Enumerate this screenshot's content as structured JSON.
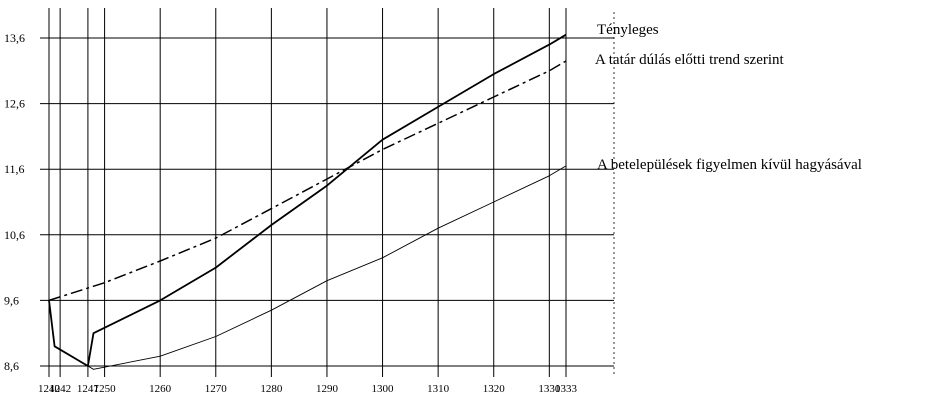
{
  "chart_data": {
    "type": "line",
    "title": "",
    "xlabel": "",
    "ylabel": "",
    "x_ticks": [
      1240,
      1242,
      1247,
      1250,
      1260,
      1270,
      1280,
      1290,
      1300,
      1310,
      1320,
      1330,
      1333
    ],
    "y_ticks": [
      "8,6",
      "9,6",
      "10,6",
      "11,6",
      "12,6",
      "13,6"
    ],
    "y_tick_values": [
      8.6,
      9.6,
      10.6,
      11.6,
      12.6,
      13.6
    ],
    "xlim": [
      1240,
      1333
    ],
    "ylim": [
      8.6,
      14.0
    ],
    "grid": true,
    "series": [
      {
        "name": "Tényleges",
        "style": "solid-thick",
        "points": [
          [
            1240,
            9.6
          ],
          [
            1241,
            8.9
          ],
          [
            1247,
            8.6
          ],
          [
            1248,
            9.1
          ],
          [
            1260,
            9.6
          ],
          [
            1270,
            10.1
          ],
          [
            1280,
            10.75
          ],
          [
            1290,
            11.35
          ],
          [
            1300,
            12.05
          ],
          [
            1310,
            12.55
          ],
          [
            1320,
            13.05
          ],
          [
            1330,
            13.5
          ],
          [
            1333,
            13.65
          ]
        ]
      },
      {
        "name": "A tatár dúlás előtti trend szerint",
        "style": "dash-dot",
        "points": [
          [
            1240,
            9.6
          ],
          [
            1250,
            9.87
          ],
          [
            1260,
            10.2
          ],
          [
            1270,
            10.55
          ],
          [
            1280,
            11.0
          ],
          [
            1290,
            11.45
          ],
          [
            1300,
            11.9
          ],
          [
            1310,
            12.3
          ],
          [
            1320,
            12.7
          ],
          [
            1330,
            13.1
          ],
          [
            1333,
            13.25
          ]
        ]
      },
      {
        "name": "A betelepülések figyelmen kívül hagyásával",
        "style": "solid-thin",
        "points": [
          [
            1247,
            8.6
          ],
          [
            1248,
            8.55
          ],
          [
            1260,
            8.75
          ],
          [
            1270,
            9.05
          ],
          [
            1280,
            9.45
          ],
          [
            1290,
            9.9
          ],
          [
            1300,
            10.25
          ],
          [
            1310,
            10.7
          ],
          [
            1320,
            11.1
          ],
          [
            1330,
            11.5
          ],
          [
            1333,
            11.65
          ]
        ]
      }
    ]
  }
}
